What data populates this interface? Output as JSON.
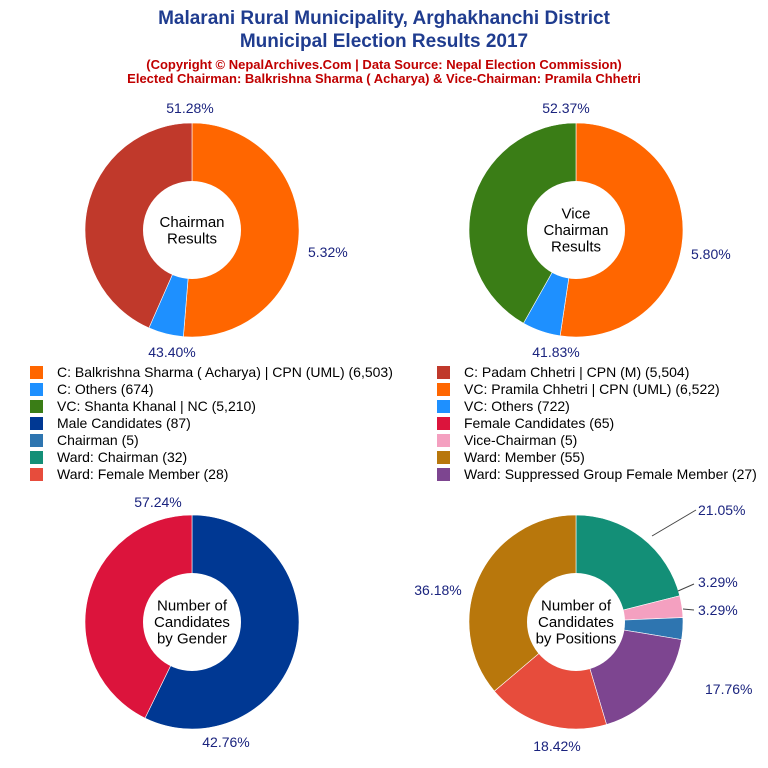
{
  "header": {
    "title_line1": "Malarani Rural Municipality, Arghakhanchi District",
    "title_line2": "Municipal Election Results 2017",
    "subtitle_line1": "(Copyright © NepalArchives.Com | Data Source: Nepal Election Commission)",
    "subtitle_line2": "Elected Chairman: Balkrishna Sharma ( Acharya) & Vice-Chairman: Pramila Chhetri"
  },
  "legend": [
    {
      "label": "C: Balkrishna Sharma ( Acharya) | CPN (UML) (6,503)",
      "color": "#ff6600"
    },
    {
      "label": "C: Padam Chhetri | CPN (M) (5,504)",
      "color": "#c0392b"
    },
    {
      "label": "C: Others (674)",
      "color": "#1e90ff"
    },
    {
      "label": "VC: Pramila Chhetri | CPN (UML) (6,522)",
      "color": "#ff6600"
    },
    {
      "label": "VC: Shanta Khanal | NC (5,210)",
      "color": "#3a7d16"
    },
    {
      "label": "VC: Others (722)",
      "color": "#1e90ff"
    },
    {
      "label": "Male Candidates (87)",
      "color": "#003893"
    },
    {
      "label": "Female Candidates (65)",
      "color": "#dc143c"
    },
    {
      "label": "Chairman (5)",
      "color": "#2e75b0"
    },
    {
      "label": "Vice-Chairman (5)",
      "color": "#f4a0c0"
    },
    {
      "label": "Ward: Chairman (32)",
      "color": "#138f77"
    },
    {
      "label": "Ward: Member (55)",
      "color": "#b8770c"
    },
    {
      "label": "Ward: Female Member (28)",
      "color": "#e74c3c"
    },
    {
      "label": "Ward: Suppressed Group Female Member (27)",
      "color": "#7d4590"
    }
  ],
  "chart_data": [
    {
      "type": "pie",
      "center_label": "Chairman\nResults",
      "slices": [
        {
          "name": "C: Balkrishna Sharma ( Acharya) | CPN (UML)",
          "value": 6503,
          "percent_label": "51.28%",
          "color": "#ff6600"
        },
        {
          "name": "C: Others",
          "value": 674,
          "percent_label": "5.32%",
          "color": "#1e90ff"
        },
        {
          "name": "C: Padam Chhetri | CPN (M)",
          "value": 5504,
          "percent_label": "43.40%",
          "color": "#c0392b"
        }
      ]
    },
    {
      "type": "pie",
      "center_label": "Vice\nChairman\nResults",
      "slices": [
        {
          "name": "VC: Pramila Chhetri | CPN (UML)",
          "value": 6522,
          "percent_label": "52.37%",
          "color": "#ff6600"
        },
        {
          "name": "VC: Others",
          "value": 722,
          "percent_label": "5.80%",
          "color": "#1e90ff"
        },
        {
          "name": "VC: Shanta Khanal | NC",
          "value": 5210,
          "percent_label": "41.83%",
          "color": "#3a7d16"
        }
      ]
    },
    {
      "type": "pie",
      "center_label": "Number of\nCandidates\nby Gender",
      "slices": [
        {
          "name": "Male Candidates",
          "value": 87,
          "percent_label": "57.24%",
          "color": "#003893"
        },
        {
          "name": "Female Candidates",
          "value": 65,
          "percent_label": "42.76%",
          "color": "#dc143c"
        }
      ]
    },
    {
      "type": "pie",
      "center_label": "Number of\nCandidates\nby Positions",
      "slices": [
        {
          "name": "Ward: Chairman",
          "value": 32,
          "percent_label": "21.05%",
          "color": "#138f77"
        },
        {
          "name": "Vice-Chairman",
          "value": 5,
          "percent_label": "3.29%",
          "color": "#f4a0c0"
        },
        {
          "name": "Chairman",
          "value": 5,
          "percent_label": "3.29%",
          "color": "#2e75b0"
        },
        {
          "name": "Ward: Suppressed Group Female Member",
          "value": 27,
          "percent_label": "17.76%",
          "color": "#7d4590"
        },
        {
          "name": "Ward: Female Member",
          "value": 28,
          "percent_label": "18.42%",
          "color": "#e74c3c"
        },
        {
          "name": "Ward: Member",
          "value": 55,
          "percent_label": "36.18%",
          "color": "#b8770c"
        }
      ]
    }
  ]
}
